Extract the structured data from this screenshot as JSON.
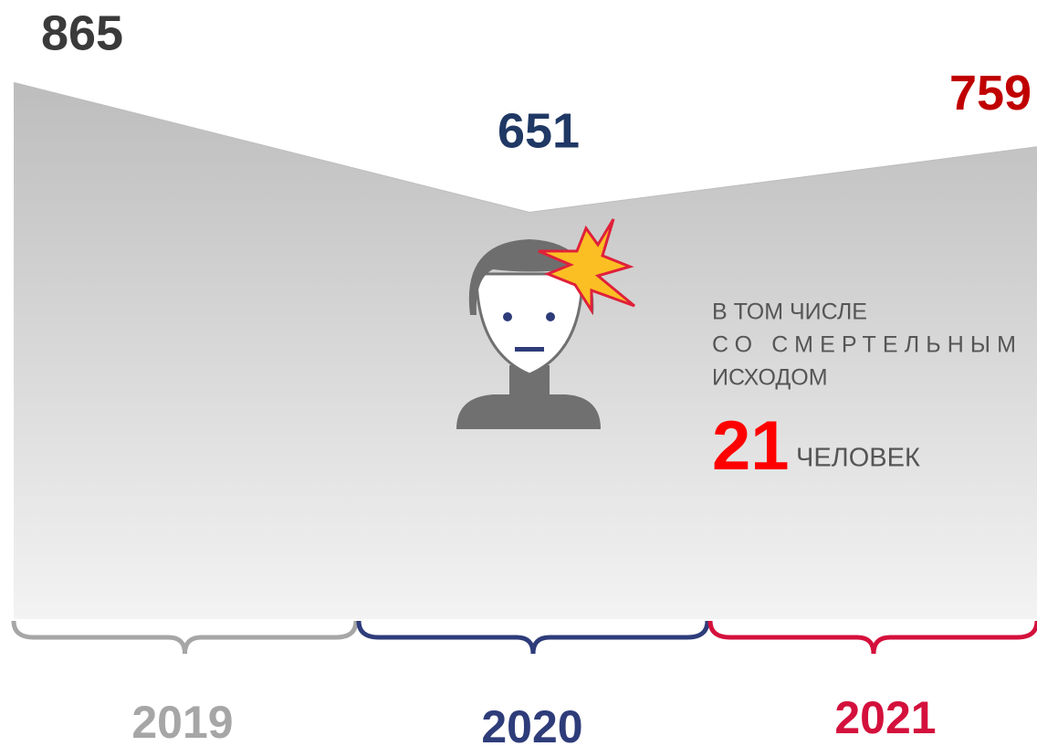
{
  "chart_data": {
    "type": "area",
    "categories": [
      "2019",
      "2020",
      "2021"
    ],
    "values": [
      865,
      651,
      759
    ],
    "colors": [
      "#a6a6a6",
      "#2e3c7a",
      "#d4103c"
    ],
    "value_colors": [
      "#3a3a3a",
      "#1f3864",
      "#c00000"
    ],
    "note": {
      "lines": [
        "В ТОМ ЧИСЛЕ",
        "СО СМЕРТЕЛЬНЫМ",
        "ИСХОДОМ"
      ],
      "number": 21,
      "unit": "ЧЕЛОВЕК"
    }
  }
}
